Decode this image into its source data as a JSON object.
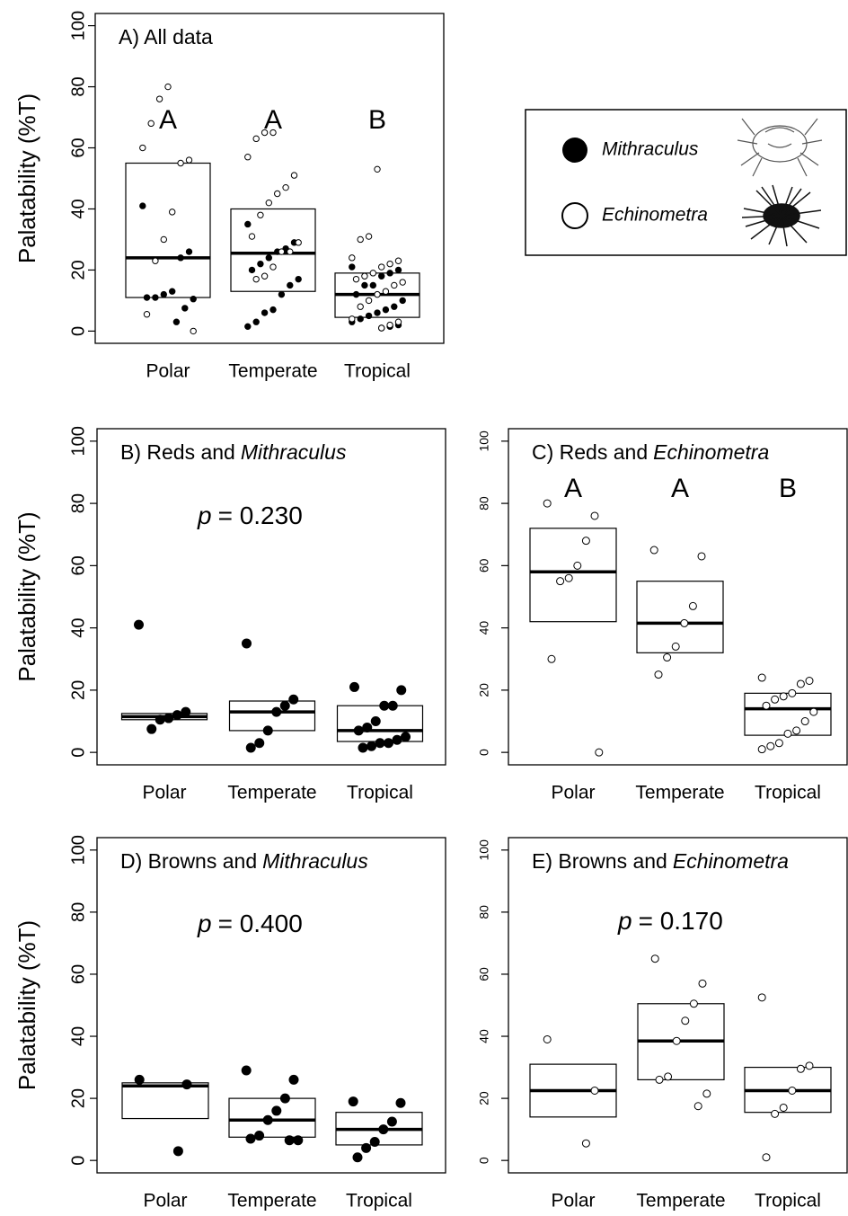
{
  "chart_data": [
    {
      "type": "box",
      "title": "A) All data",
      "ylabel": "Palatability (%T)",
      "categories": [
        "Polar",
        "Temperate",
        "Tropical"
      ],
      "ylim": [
        -4,
        104
      ],
      "yticks": [
        0,
        20,
        40,
        60,
        80,
        100
      ],
      "boxes": [
        [
          11,
          24,
          55
        ],
        [
          13,
          25.5,
          40
        ],
        [
          4.5,
          12,
          19
        ]
      ],
      "letters": [
        "A",
        "A",
        "B"
      ],
      "series": [
        {
          "name": "Mithraculus",
          "filled": true,
          "values": [
            [
              41,
              26,
              24,
              13,
              12,
              11,
              11,
              10.5,
              7.5,
              3
            ],
            [
              35,
              29,
              27,
              26,
              24,
              22,
              20,
              17,
              15,
              12,
              7,
              6,
              3,
              1.5
            ],
            [
              21,
              20,
              19,
              18,
              15,
              15,
              12,
              10,
              8,
              7,
              6,
              5,
              4,
              3,
              2,
              1.5,
              1
            ]
          ]
        },
        {
          "name": "Echinometra",
          "filled": false,
          "values": [
            [
              80,
              76,
              68,
              60,
              56,
              55,
              39,
              30,
              23,
              5.5,
              0
            ],
            [
              65,
              65,
              63,
              57,
              51,
              47,
              45,
              42,
              38,
              31,
              29,
              26,
              26,
              21,
              18,
              17
            ],
            [
              53,
              31,
              30,
              24,
              23,
              22,
              21,
              19,
              18,
              17,
              16,
              15,
              13,
              12,
              10,
              8,
              4,
              3,
              2,
              1
            ]
          ]
        }
      ]
    },
    {
      "type": "box",
      "title": "B) Reds and",
      "title_italic": "Mithraculus",
      "ylabel": "Palatability (%T)",
      "p_label": "p",
      "p_text": "= 0.230",
      "categories": [
        "Polar",
        "Temperate",
        "Tropical"
      ],
      "ylim": [
        -4,
        104
      ],
      "yticks": [
        0,
        20,
        40,
        60,
        80,
        100
      ],
      "boxes": [
        [
          10.5,
          11.5,
          12.5
        ],
        [
          7,
          13,
          16.5
        ],
        [
          3.5,
          7,
          15
        ]
      ],
      "series": [
        {
          "name": "Mithraculus",
          "filled": true,
          "values": [
            [
              41,
              13,
              12,
              11,
              10.5,
              7.5
            ],
            [
              35,
              17,
              15,
              13,
              7,
              3,
              1.5
            ],
            [
              21,
              20,
              15,
              15,
              10,
              8,
              7,
              5,
              4,
              3,
              3,
              2,
              1.5
            ]
          ]
        }
      ]
    },
    {
      "type": "box",
      "title": "C) Reds and",
      "title_italic": "Echinometra",
      "categories": [
        "Polar",
        "Temperate",
        "Tropical"
      ],
      "ylim": [
        -4,
        104
      ],
      "yticks": [
        0,
        20,
        40,
        60,
        80,
        100
      ],
      "boxes": [
        [
          42,
          58,
          72
        ],
        [
          32,
          41.5,
          55
        ],
        [
          5.5,
          14,
          19
        ]
      ],
      "letters": [
        "A",
        "A",
        "B"
      ],
      "series": [
        {
          "name": "Echinometra",
          "filled": false,
          "values": [
            [
              80,
              76,
              68,
              60,
              56,
              55,
              30,
              0
            ],
            [
              65,
              63,
              47,
              41.5,
              34,
              30.5,
              25
            ],
            [
              24,
              23,
              22,
              19,
              18,
              17,
              15,
              13,
              10,
              7,
              6,
              3,
              2,
              1
            ]
          ]
        }
      ]
    },
    {
      "type": "box",
      "title": "D) Browns and",
      "title_italic": "Mithraculus",
      "ylabel": "Palatability (%T)",
      "p_label": "p",
      "p_text": "= 0.400",
      "categories": [
        "Polar",
        "Temperate",
        "Tropical"
      ],
      "ylim": [
        -4,
        104
      ],
      "yticks": [
        0,
        20,
        40,
        60,
        80,
        100
      ],
      "boxes": [
        [
          13.5,
          24,
          25
        ],
        [
          7.5,
          13,
          20
        ],
        [
          5,
          10,
          15.5
        ]
      ],
      "series": [
        {
          "name": "Mithraculus",
          "filled": true,
          "values": [
            [
              26,
              24.5,
              3
            ],
            [
              29,
              26,
              20,
              16,
              13,
              8,
              7,
              6.5,
              6.5
            ],
            [
              19,
              18.5,
              12.5,
              10,
              6,
              4,
              1
            ]
          ]
        }
      ]
    },
    {
      "type": "box",
      "title": "E) Browns and",
      "title_italic": "Echinometra",
      "p_label": "p",
      "p_text": "= 0.170",
      "categories": [
        "Polar",
        "Temperate",
        "Tropical"
      ],
      "ylim": [
        -4,
        104
      ],
      "yticks": [
        0,
        20,
        40,
        60,
        80,
        100
      ],
      "boxes": [
        [
          14,
          22.5,
          31
        ],
        [
          26,
          38.5,
          50.5
        ],
        [
          15.5,
          22.5,
          30
        ]
      ],
      "series": [
        {
          "name": "Echinometra",
          "filled": false,
          "values": [
            [
              39,
              22.5,
              5.5
            ],
            [
              65,
              57,
              50.5,
              45,
              38.5,
              27,
              26,
              21.5,
              17.5
            ],
            [
              52.5,
              30.5,
              29.5,
              22.5,
              17,
              15,
              1
            ]
          ]
        }
      ]
    }
  ]
}
